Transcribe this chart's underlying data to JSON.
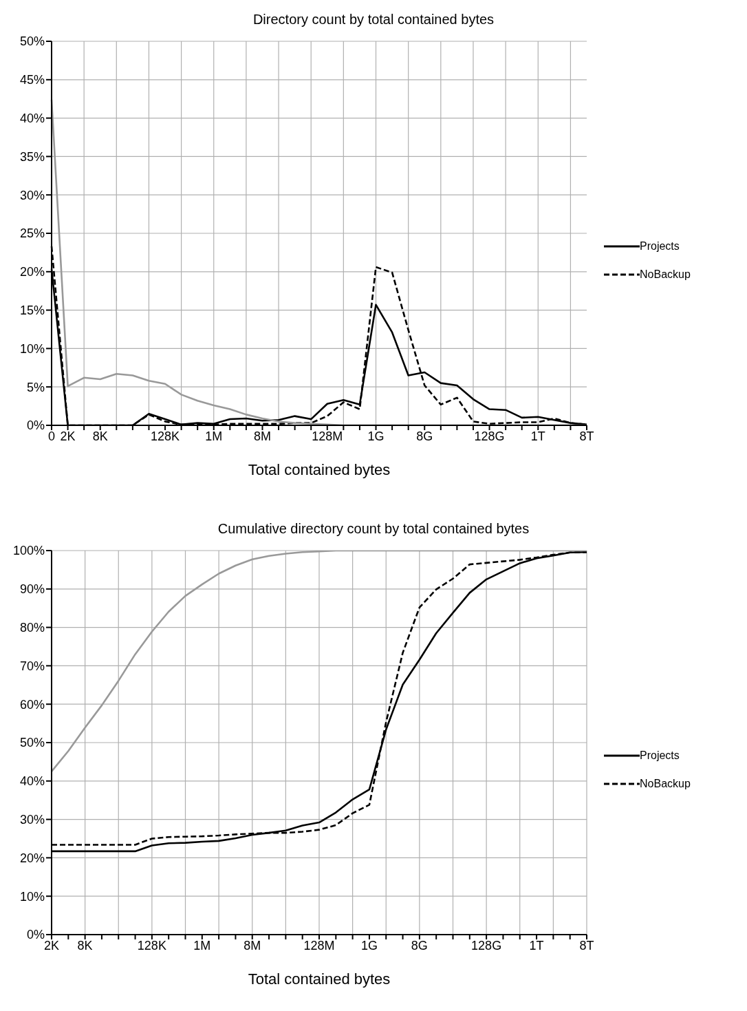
{
  "chart_data": [
    {
      "type": "line",
      "title": "Directory count by total contained bytes",
      "xlabel": "Total contained bytes",
      "categories": [
        "0",
        "2K",
        null,
        "8K",
        null,
        null,
        null,
        "128K",
        null,
        null,
        "1M",
        null,
        null,
        "8M",
        null,
        null,
        null,
        "128M",
        null,
        null,
        "1G",
        null,
        null,
        "8G",
        null,
        null,
        null,
        "128G",
        null,
        null,
        "1T",
        null,
        null,
        "8T"
      ],
      "ylim": [
        0,
        50
      ],
      "yticks": [
        {
          "value": 0,
          "label": "0%"
        },
        {
          "value": 5,
          "label": "5%"
        },
        {
          "value": 10,
          "label": "10%"
        },
        {
          "value": 15,
          "label": "15%"
        },
        {
          "value": 20,
          "label": "20%"
        },
        {
          "value": 25,
          "label": "25%"
        },
        {
          "value": 30,
          "label": "30%"
        },
        {
          "value": 35,
          "label": "35%"
        },
        {
          "value": 40,
          "label": "40%"
        },
        {
          "value": 45,
          "label": "45%"
        },
        {
          "value": 50,
          "label": "50%"
        }
      ],
      "grid": true,
      "legend": "right",
      "marker": "none",
      "series": [
        {
          "name": "Projects",
          "color": "#000000",
          "line_style": "solid",
          "values": [
            20.4,
            0,
            0,
            0,
            0,
            0,
            1.5,
            0.8,
            0.1,
            0.3,
            0.2,
            0.8,
            0.9,
            0.6,
            0.7,
            1.2,
            0.8,
            2.8,
            3.3,
            2.7,
            15.7,
            12.1,
            6.5,
            6.9,
            5.5,
            5.2,
            3.4,
            2.1,
            2.0,
            1.0,
            1.1,
            0.7,
            0.3,
            0.1
          ]
        },
        {
          "name": "NoBackup",
          "color": "#000000",
          "line_style": "dashed",
          "values": [
            23.3,
            0,
            0,
            0,
            0,
            0,
            1.4,
            0.5,
            0.1,
            0.1,
            0.1,
            0.2,
            0.2,
            0.2,
            0.2,
            0.3,
            0.3,
            1.2,
            3.0,
            2.1,
            20.6,
            19.9,
            12.4,
            5.2,
            2.7,
            3.6,
            0.5,
            0.2,
            0.3,
            0.4,
            0.4,
            0.9,
            0.3,
            0.1
          ]
        },
        {
          "color": "#999999",
          "line_style": "solid",
          "values": [
            42.4,
            5.1,
            6.2,
            6.0,
            6.7,
            6.5,
            5.8,
            5.4,
            4.0,
            3.2,
            2.6,
            2.1,
            1.4,
            0.9,
            0.5,
            0.3,
            0.2,
            0.1,
            0,
            0,
            0,
            0,
            0,
            0,
            0,
            0,
            0,
            0,
            0,
            0,
            0,
            0,
            0,
            0
          ]
        }
      ]
    },
    {
      "type": "line",
      "title": "Cumulative directory count by total contained bytes",
      "xlabel": "Total contained bytes",
      "categories": [
        "2K",
        null,
        "8K",
        null,
        null,
        null,
        "128K",
        null,
        null,
        "1M",
        null,
        null,
        "8M",
        null,
        null,
        null,
        "128M",
        null,
        null,
        "1G",
        null,
        null,
        "8G",
        null,
        null,
        null,
        "128G",
        null,
        null,
        "1T",
        null,
        null,
        "8T"
      ],
      "ylim": [
        0,
        100
      ],
      "yticks": [
        {
          "value": 0,
          "label": "0%"
        },
        {
          "value": 10,
          "label": "10%"
        },
        {
          "value": 20,
          "label": "20%"
        },
        {
          "value": 30,
          "label": "30%"
        },
        {
          "value": 40,
          "label": "40%"
        },
        {
          "value": 50,
          "label": "50%"
        },
        {
          "value": 60,
          "label": "60%"
        },
        {
          "value": 70,
          "label": "70%"
        },
        {
          "value": 80,
          "label": "80%"
        },
        {
          "value": 90,
          "label": "90%"
        },
        {
          "value": 100,
          "label": "100%"
        }
      ],
      "grid": true,
      "legend": "right",
      "marker": "none",
      "series": [
        {
          "name": "Projects",
          "color": "#000000",
          "line_style": "solid",
          "values": [
            21.7,
            21.7,
            21.7,
            21.7,
            21.7,
            21.7,
            23.2,
            23.8,
            23.9,
            24.2,
            24.4,
            25.1,
            26.0,
            26.5,
            27.1,
            28.4,
            29.2,
            31.8,
            35.2,
            37.8,
            53.4,
            65.1,
            71.6,
            78.5,
            83.8,
            89.0,
            92.5,
            94.6,
            96.7,
            98.0,
            98.7,
            99.5,
            99.6
          ]
        },
        {
          "name": "NoBackup",
          "color": "#000000",
          "line_style": "dashed",
          "values": [
            23.4,
            23.4,
            23.4,
            23.4,
            23.4,
            23.4,
            25.0,
            25.4,
            25.5,
            25.6,
            25.8,
            26.1,
            26.3,
            26.5,
            26.5,
            26.8,
            27.3,
            28.5,
            31.6,
            33.8,
            55.3,
            73.4,
            85.2,
            89.9,
            92.7,
            96.4,
            96.8,
            97.2,
            97.6,
            98.2,
            98.9,
            99.5,
            99.6
          ]
        },
        {
          "color": "#999999",
          "line_style": "solid",
          "values": [
            42.5,
            47.8,
            53.9,
            59.7,
            66.1,
            73.0,
            78.9,
            84.1,
            88.2,
            91.2,
            94.0,
            96.1,
            97.7,
            98.6,
            99.2,
            99.6,
            99.8,
            100,
            100,
            100,
            100,
            100,
            100,
            100,
            100,
            100,
            100,
            100,
            100,
            100,
            100,
            100,
            100
          ]
        }
      ]
    }
  ]
}
